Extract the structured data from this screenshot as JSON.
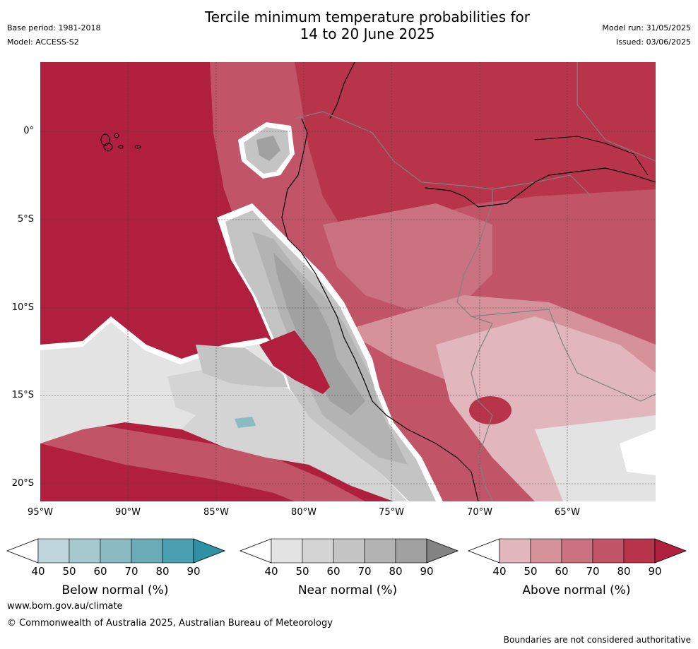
{
  "header": {
    "title_line1": "Tercile minimum temperature probabilities for",
    "title_line2": "14 to 20 June 2025",
    "base_period": "Base period: 1981-2018",
    "model": "Model: ACCESS-S2",
    "model_run": "Model run: 31/05/2025",
    "issued": "Issued: 03/06/2025"
  },
  "map": {
    "lat_labels": [
      "0°",
      "5°S",
      "10°S",
      "15°S",
      "20°S"
    ],
    "lon_labels": [
      "95°W",
      "90°W",
      "85°W",
      "80°W",
      "75°W",
      "70°W",
      "65°W"
    ]
  },
  "colorbars": [
    {
      "title": "Below normal (%)",
      "ticks": [
        "40",
        "50",
        "60",
        "70",
        "80",
        "90"
      ],
      "colors": [
        "#ffffff",
        "#bfd6dc",
        "#a6c9cf",
        "#8bbac2",
        "#6babb7",
        "#4aa0b0",
        "#2e91a6"
      ]
    },
    {
      "title": "Near normal (%)",
      "ticks": [
        "40",
        "50",
        "60",
        "70",
        "80",
        "90"
      ],
      "colors": [
        "#ffffff",
        "#e3e3e3",
        "#d4d4d4",
        "#c4c4c4",
        "#b3b3b3",
        "#a1a1a1",
        "#838383"
      ]
    },
    {
      "title": "Above normal (%)",
      "ticks": [
        "40",
        "50",
        "60",
        "70",
        "80",
        "90"
      ],
      "colors": [
        "#ffffff",
        "#e1b7bd",
        "#d6929b",
        "#cb7280",
        "#c15567",
        "#b7344b",
        "#b01f3d"
      ]
    }
  ],
  "footer": {
    "website": "www.bom.gov.au/climate",
    "copyright": "© Commonwealth of Australia 2025, Australian Bureau of Meteorology",
    "disclaimer": "Boundaries are not considered authoritative"
  }
}
